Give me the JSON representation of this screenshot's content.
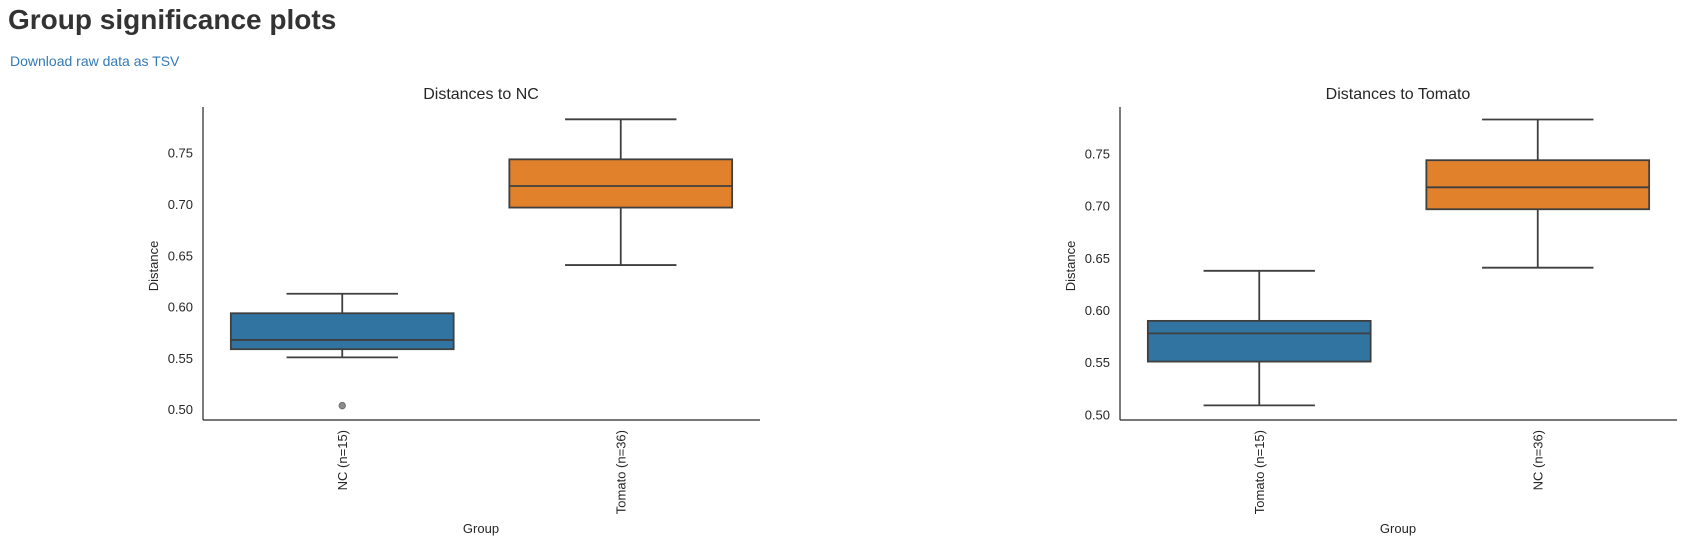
{
  "page": {
    "title": "Group significance plots",
    "download_link": "Download raw data as TSV",
    "link_color": "#337ab7"
  },
  "chart_data": [
    {
      "type": "box",
      "title": "Distances to NC",
      "xlabel": "Group",
      "ylabel": "Distance",
      "ylim": [
        0.49,
        0.795
      ],
      "yticks": [
        0.5,
        0.55,
        0.6,
        0.65,
        0.7,
        0.75
      ],
      "categories": [
        "NC (n=15)",
        "Tomato (n=36)"
      ],
      "boxes": [
        {
          "category": "NC (n=15)",
          "color": "#3274a1",
          "whisker_low": 0.551,
          "q1": 0.559,
          "median": 0.568,
          "q3": 0.594,
          "whisker_high": 0.613,
          "outliers": [
            0.504
          ]
        },
        {
          "category": "Tomato (n=36)",
          "color": "#e1812c",
          "whisker_low": 0.641,
          "q1": 0.697,
          "median": 0.718,
          "q3": 0.744,
          "whisker_high": 0.783,
          "outliers": []
        }
      ]
    },
    {
      "type": "box",
      "title": "Distances to Tomato",
      "xlabel": "Group",
      "ylabel": "Distance",
      "ylim": [
        0.495,
        0.795
      ],
      "yticks": [
        0.5,
        0.55,
        0.6,
        0.65,
        0.7,
        0.75
      ],
      "categories": [
        "Tomato (n=15)",
        "NC (n=36)"
      ],
      "boxes": [
        {
          "category": "Tomato (n=15)",
          "color": "#3274a1",
          "whisker_low": 0.509,
          "q1": 0.551,
          "median": 0.578,
          "q3": 0.59,
          "whisker_high": 0.638,
          "outliers": []
        },
        {
          "category": "NC (n=36)",
          "color": "#e1812c",
          "whisker_low": 0.641,
          "q1": 0.697,
          "median": 0.718,
          "q3": 0.744,
          "whisker_high": 0.783,
          "outliers": []
        }
      ]
    }
  ]
}
